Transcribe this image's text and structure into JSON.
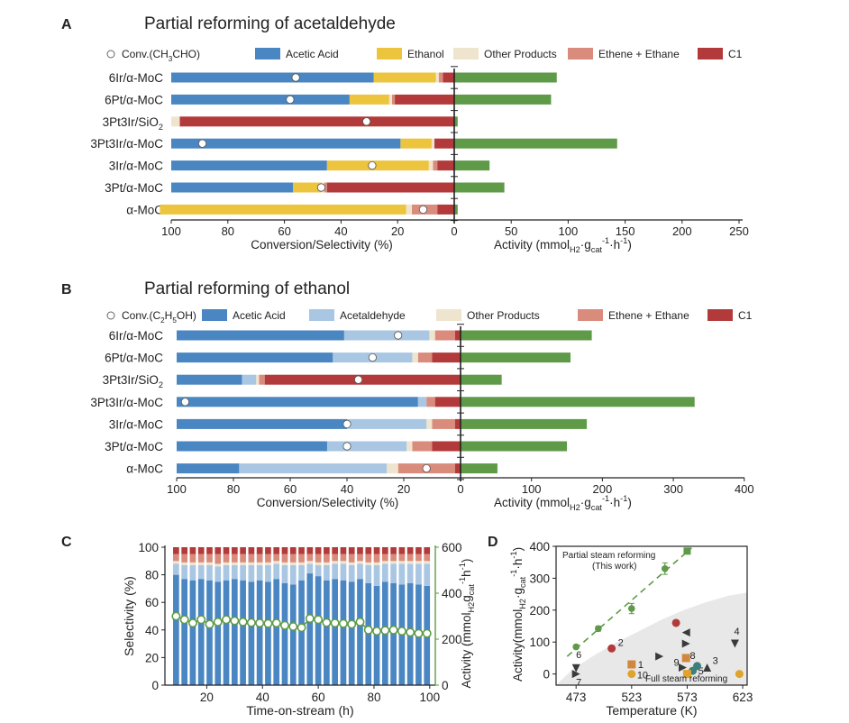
{
  "colors": {
    "acetic": "#4a86c2",
    "ethanol": "#ecc43e",
    "acetaldehyde": "#a9c6e3",
    "other": "#efe5cf",
    "ethene": "#d98b7c",
    "c1": "#b33a3a",
    "activity": "#5e9a47",
    "shade": "#e8e8e8",
    "mark_dark": "#3a3a3a",
    "mark_red": "#b33a3a",
    "mark_orange": "#d2873e",
    "mark_gold": "#e0a42c",
    "mark_teal": "#3d7f7a"
  },
  "chart_data": [
    {
      "panel": "A",
      "type": "bar",
      "title": "Partial reforming of acetaldehyde",
      "conversion_label": "Conv.(CH3CHO)",
      "legend": [
        "Acetic Acid",
        "Ethanol",
        "Other Products",
        "Ethene + Ethane",
        "C1"
      ],
      "left_xlabel": "Conversion/Selectivity (%)",
      "right_xlabel_parts": [
        "Activity (mmol",
        "H2",
        "·g",
        "cat",
        "-1",
        "·h",
        "-1",
        ")"
      ],
      "left_ticks": [
        "100",
        "80",
        "60",
        "40",
        "20",
        "0"
      ],
      "right_ticks": [
        "50",
        "100",
        "150",
        "200",
        "250"
      ],
      "left_range": [
        100,
        0
      ],
      "right_range": [
        0,
        250
      ],
      "categories": [
        "6Ir/α-MoC",
        "6Pt/α-MoC",
        "3Pt3Ir/SiO2",
        "3Pt3Ir/α-MoC",
        "3Ir/α-MoC",
        "3Pt/α-MoC",
        "α-MoC"
      ],
      "category_labels": [
        {
          "main": "6Ir/α-MoC",
          "sub": ""
        },
        {
          "main": "6Pt/α-MoC",
          "sub": ""
        },
        {
          "main": "3Pt3Ir/SiO",
          "sub": "2"
        },
        {
          "main": "3Pt3Ir/α-MoC",
          "sub": ""
        },
        {
          "main": "3Ir/α-MoC",
          "sub": ""
        },
        {
          "main": "3Pt/α-MoC",
          "sub": ""
        },
        {
          "main": "α-MoC",
          "sub": ""
        }
      ],
      "selectivity_keys": [
        "C1",
        "Ethene + Ethane",
        "Other Products",
        "Ethanol",
        "Acetic Acid"
      ],
      "selectivity": [
        [
          4,
          1.5,
          1,
          22,
          71.5
        ],
        [
          21,
          1,
          1,
          14,
          63
        ],
        [
          97,
          0,
          3,
          0,
          0
        ],
        [
          7,
          0,
          1,
          11,
          81
        ],
        [
          6,
          1.5,
          1.5,
          36,
          55
        ],
        [
          45,
          1,
          1,
          10,
          43
        ],
        [
          6,
          9,
          2,
          87,
          0
        ]
      ],
      "conversion": [
        56,
        58,
        31,
        89,
        29,
        47,
        11
      ],
      "activity": [
        90,
        85,
        3,
        143,
        31,
        44,
        3
      ]
    },
    {
      "panel": "B",
      "type": "bar",
      "title": "Partial reforming of ethanol",
      "conversion_label": "Conv.(C2H5OH)",
      "legend": [
        "Acetic Acid",
        "Acetaldehyde",
        "Other Products",
        "Ethene + Ethane",
        "C1"
      ],
      "left_xlabel": "Conversion/Selectivity (%)",
      "right_xlabel_parts": [
        "Activity (mmol",
        "H2",
        "·g",
        "cat",
        "-1",
        "·h",
        "-1",
        ")"
      ],
      "left_ticks": [
        "100",
        "80",
        "60",
        "40",
        "20",
        "0"
      ],
      "right_ticks": [
        "100",
        "200",
        "300",
        "400"
      ],
      "left_range": [
        100,
        0
      ],
      "right_range": [
        0,
        400
      ],
      "categories": [
        "6Ir/α-MoC",
        "6Pt/α-MoC",
        "3Pt3Ir/SiO2",
        "3Pt3Ir/α-MoC",
        "3Ir/α-MoC",
        "3Pt/α-MoC",
        "α-MoC"
      ],
      "category_labels": [
        {
          "main": "6Ir/α-MoC",
          "sub": ""
        },
        {
          "main": "6Pt/α-MoC",
          "sub": ""
        },
        {
          "main": "3Pt3Ir/SiO",
          "sub": "2"
        },
        {
          "main": "3Pt3Ir/α-MoC",
          "sub": ""
        },
        {
          "main": "3Ir/α-MoC",
          "sub": ""
        },
        {
          "main": "3Pt/α-MoC",
          "sub": ""
        },
        {
          "main": "α-MoC",
          "sub": ""
        }
      ],
      "selectivity_keys": [
        "C1",
        "Ethene + Ethane",
        "Other Products",
        "Acetaldehyde",
        "Acetic Acid"
      ],
      "selectivity": [
        [
          2,
          7,
          2,
          30,
          59
        ],
        [
          10,
          5,
          2,
          28,
          55
        ],
        [
          69,
          2,
          1,
          5,
          23
        ],
        [
          9,
          3,
          0,
          3,
          85
        ],
        [
          2,
          8,
          2,
          28,
          60
        ],
        [
          10,
          7,
          2,
          28,
          53
        ],
        [
          2,
          20,
          4,
          52,
          22
        ]
      ],
      "conversion": [
        22,
        31,
        36,
        97,
        40,
        40,
        12
      ],
      "activity": [
        185,
        155,
        58,
        330,
        178,
        150,
        52
      ]
    },
    {
      "panel": "C",
      "type": "bar",
      "xlabel": "Time-on-stream (h)",
      "ylabel": "Selectivity (%)",
      "y2label_parts": [
        "Activity (mmol",
        "H2",
        "g",
        "cat",
        "-1",
        "h",
        "-1",
        ")"
      ],
      "xlim": [
        5,
        102
      ],
      "ylim": [
        0,
        100
      ],
      "y2lim": [
        0,
        600
      ],
      "xticks": [
        "20",
        "40",
        "60",
        "80",
        "100"
      ],
      "yticks": [
        "0",
        "20",
        "40",
        "60",
        "80",
        "100"
      ],
      "y2ticks": [
        "0",
        "200",
        "400",
        "600"
      ],
      "series_keys": [
        "Acetic Acid",
        "Acetaldehyde",
        "Other Products",
        "Ethene + Ethane",
        "C1"
      ],
      "x": [
        9,
        12,
        15,
        18,
        21,
        24,
        27,
        30,
        33,
        36,
        39,
        42,
        45,
        48,
        51,
        54,
        57,
        60,
        63,
        66,
        69,
        72,
        75,
        78,
        81,
        84,
        87,
        90,
        93,
        96,
        99
      ],
      "acetic": [
        80,
        77,
        76,
        77,
        76,
        75,
        76,
        77,
        76,
        75,
        76,
        75,
        77,
        74,
        73,
        76,
        81,
        79,
        76,
        77,
        76,
        75,
        77,
        74,
        72,
        75,
        74,
        73,
        74,
        73,
        72
      ],
      "acetaldehyde": [
        8,
        10,
        11,
        10,
        11,
        11,
        11,
        10,
        11,
        12,
        11,
        12,
        11,
        13,
        14,
        11,
        7,
        8,
        11,
        11,
        12,
        12,
        11,
        13,
        15,
        13,
        14,
        15,
        14,
        15,
        16
      ],
      "other": [
        2,
        2,
        2,
        2,
        2,
        2,
        2,
        2,
        2,
        2,
        2,
        2,
        2,
        2,
        2,
        2,
        2,
        2,
        2,
        2,
        2,
        2,
        2,
        2,
        2,
        2,
        2,
        2,
        2,
        2,
        2
      ],
      "ethene": [
        5,
        6,
        6,
        6,
        6,
        7,
        6,
        6,
        6,
        6,
        6,
        6,
        5,
        6,
        6,
        6,
        5,
        6,
        6,
        5,
        5,
        6,
        5,
        6,
        6,
        5,
        5,
        5,
        5,
        5,
        5
      ],
      "c1": [
        5,
        5,
        5,
        5,
        5,
        5,
        5,
        5,
        5,
        5,
        5,
        5,
        5,
        5,
        5,
        5,
        5,
        5,
        5,
        5,
        5,
        5,
        5,
        5,
        5,
        5,
        5,
        5,
        5,
        5,
        5
      ],
      "activity": [
        300,
        285,
        270,
        285,
        265,
        275,
        285,
        280,
        275,
        272,
        270,
        268,
        270,
        260,
        255,
        250,
        290,
        285,
        272,
        270,
        268,
        265,
        275,
        240,
        235,
        238,
        240,
        235,
        230,
        225,
        225
      ]
    },
    {
      "panel": "D",
      "type": "scatter",
      "xlabel": "Temperature (K)",
      "ylabel_parts": [
        "Activity(mmol",
        "H2",
        "·g",
        "cat",
        "-1",
        "·h",
        "-1",
        ")"
      ],
      "xlim": [
        455,
        627
      ],
      "ylim": [
        -35,
        400
      ],
      "xticks": [
        "473",
        "523",
        "573",
        "623"
      ],
      "yticks": [
        "0",
        "100",
        "200",
        "300",
        "400"
      ],
      "annotation_top": "Partial steam reforming",
      "annotation_top2": "(This work)",
      "annotation_bottom": "Full steam reforming",
      "this_work": {
        "x": [
          473,
          493,
          523,
          553,
          573
        ],
        "y": [
          85,
          142,
          205,
          330,
          385
        ],
        "err": [
          6,
          8,
          16,
          18,
          8
        ]
      },
      "fit_line": {
        "x": [
          465,
          577
        ],
        "y": [
          55,
          395
        ]
      },
      "shade_boundary": {
        "x": [
          455,
          470,
          490,
          510,
          530,
          550,
          570,
          590,
          610,
          627
        ],
        "y": [
          -35,
          15,
          60,
          100,
          135,
          170,
          200,
          225,
          245,
          255
        ]
      },
      "literature": [
        {
          "label": "1",
          "x": 523,
          "y": 30,
          "marker": "square",
          "color": "mark_orange"
        },
        {
          "label": "2",
          "x": 505,
          "y": 80,
          "marker": "circle",
          "color": "mark_red"
        },
        {
          "label": "",
          "x": 563,
          "y": 160,
          "marker": "circle",
          "color": "mark_red"
        },
        {
          "label": "3",
          "x": 591,
          "y": 20,
          "marker": "tri-up",
          "color": "mark_dark"
        },
        {
          "label": "4",
          "x": 616,
          "y": 95,
          "marker": "tri-down",
          "color": "mark_dark"
        },
        {
          "label": "5",
          "x": 578,
          "y": 10,
          "marker": "circle",
          "color": "mark_teal"
        },
        {
          "label": "6",
          "x": 473,
          "y": 18,
          "marker": "tri-down",
          "color": "mark_dark"
        },
        {
          "label": "7",
          "x": 473,
          "y": 0,
          "marker": "tri-right",
          "color": "mark_dark"
        },
        {
          "label": "8",
          "x": 582,
          "y": 25,
          "marker": "circle",
          "color": "mark_teal"
        },
        {
          "label": "9",
          "x": 569,
          "y": 20,
          "marker": "tri-right",
          "color": "mark_dark"
        },
        {
          "label": "10",
          "x": 523,
          "y": 0,
          "marker": "circle",
          "color": "mark_gold"
        },
        {
          "label": "",
          "x": 548,
          "y": 55,
          "marker": "tri-right",
          "color": "mark_dark"
        },
        {
          "label": "",
          "x": 572,
          "y": 50,
          "marker": "square",
          "color": "mark_orange"
        },
        {
          "label": "",
          "x": 572,
          "y": 130,
          "marker": "tri-left",
          "color": "mark_dark"
        },
        {
          "label": "",
          "x": 572,
          "y": 95,
          "marker": "tri-right",
          "color": "mark_dark"
        },
        {
          "label": "",
          "x": 573,
          "y": 0,
          "marker": "square",
          "color": "mark_gold"
        },
        {
          "label": "",
          "x": 620,
          "y": 0,
          "marker": "circle",
          "color": "mark_gold"
        }
      ]
    }
  ]
}
